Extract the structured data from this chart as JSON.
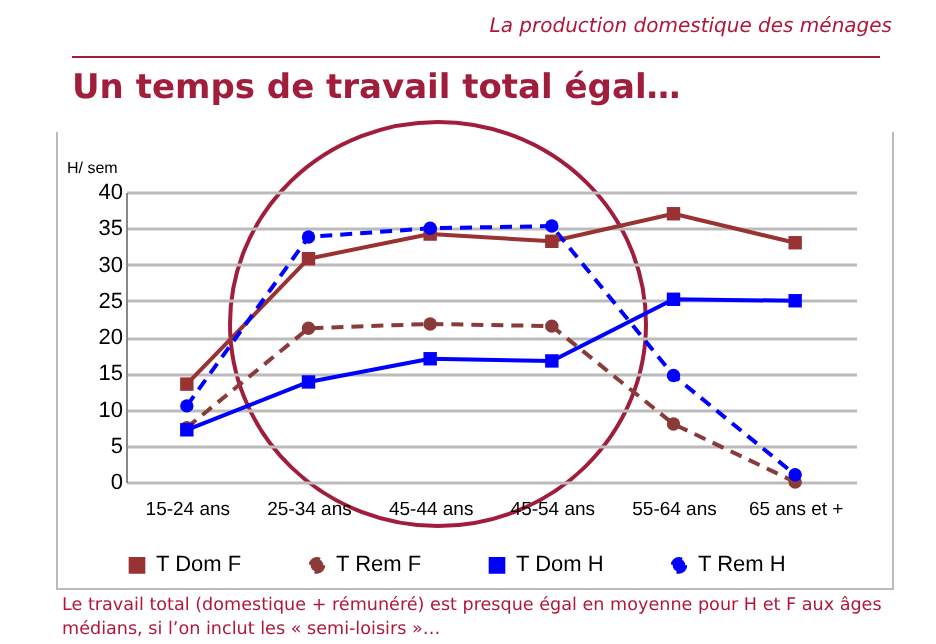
{
  "chart_data": {
    "type": "line",
    "title": "Un temps de travail total égal…",
    "subtitle": "La production domestique des ménages",
    "ylabel": "H/ sem",
    "annotations": [
      "Le travail  total (domestique + rémunéré) est presque égal en moyenne pour H et F aux âges médians, si l’on inclut les « semi-loisirs »…"
    ],
    "categories": [
      "15-24 ans",
      "25-34 ans",
      "45-44 ans",
      "45-54 ans",
      "55-64 ans",
      "65 ans et +"
    ],
    "series": [
      {
        "name": "T Dom F",
        "color": "#993333",
        "marker": "square",
        "line_style": "solid",
        "values": [
          13.5,
          30.8,
          34.2,
          33.2,
          37,
          33
        ]
      },
      {
        "name": "T Rem F",
        "color": "#8b3a3a",
        "marker": "circle",
        "line_style": "dashed",
        "values": [
          7.5,
          21.2,
          21.8,
          21.5,
          8,
          0
        ]
      },
      {
        "name": "T Dom H",
        "color": "#0000ff",
        "marker": "square",
        "line_style": "solid",
        "values": [
          7.2,
          13.8,
          17,
          16.7,
          25.2,
          25
        ]
      },
      {
        "name": "T Rem H",
        "color": "#0000ff",
        "marker": "circle",
        "line_style": "dashed",
        "values": [
          10.5,
          33.8,
          35,
          35.3,
          14.7,
          1
        ]
      }
    ],
    "ylim": [
      0,
      40
    ],
    "yticks": [
      0,
      5,
      10,
      15,
      20,
      25,
      30,
      35,
      40
    ],
    "grid": "y",
    "legend": "bottom"
  }
}
